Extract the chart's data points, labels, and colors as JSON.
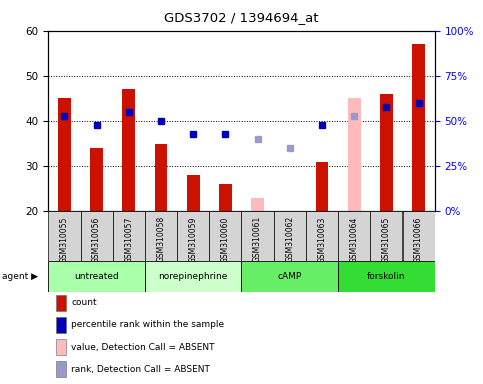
{
  "title": "GDS3702 / 1394694_at",
  "samples": [
    "GSM310055",
    "GSM310056",
    "GSM310057",
    "GSM310058",
    "GSM310059",
    "GSM310060",
    "GSM310061",
    "GSM310062",
    "GSM310063",
    "GSM310064",
    "GSM310065",
    "GSM310066"
  ],
  "agent_groups": [
    {
      "label": "untreated",
      "start": 0,
      "end": 2,
      "color": "#aaffaa"
    },
    {
      "label": "norepinephrine",
      "start": 3,
      "end": 5,
      "color": "#ccffcc"
    },
    {
      "label": "cAMP",
      "start": 6,
      "end": 8,
      "color": "#66ee66"
    },
    {
      "label": "forskolin",
      "start": 9,
      "end": 11,
      "color": "#33dd33"
    }
  ],
  "bar_values": [
    45,
    34,
    47,
    35,
    28,
    26,
    null,
    null,
    31,
    null,
    46,
    57
  ],
  "bar_absent_values": [
    null,
    null,
    null,
    null,
    null,
    null,
    23,
    20,
    null,
    45,
    null,
    null
  ],
  "rank_values": [
    41,
    39,
    42,
    40,
    37,
    37,
    null,
    null,
    39,
    null,
    43,
    44
  ],
  "rank_absent_values": [
    null,
    null,
    null,
    null,
    null,
    null,
    36,
    34,
    null,
    41,
    null,
    null
  ],
  "ylim_left": [
    20,
    60
  ],
  "ylim_right": [
    0,
    100
  ],
  "yticks_left": [
    20,
    30,
    40,
    50,
    60
  ],
  "yticks_right": [
    0,
    25,
    50,
    75,
    100
  ],
  "yticklabels_right": [
    "0%",
    "25%",
    "50%",
    "75%",
    "100%"
  ],
  "bar_color": "#cc1100",
  "bar_absent_color": "#ffbbbb",
  "rank_color": "#0000bb",
  "rank_absent_color": "#9999cc",
  "dotted_lines": [
    30,
    40,
    50
  ],
  "legend_items": [
    {
      "color": "#cc1100",
      "label": "count"
    },
    {
      "color": "#0000bb",
      "label": "percentile rank within the sample"
    },
    {
      "color": "#ffbbbb",
      "label": "value, Detection Call = ABSENT"
    },
    {
      "color": "#9999cc",
      "label": "rank, Detection Call = ABSENT"
    }
  ]
}
